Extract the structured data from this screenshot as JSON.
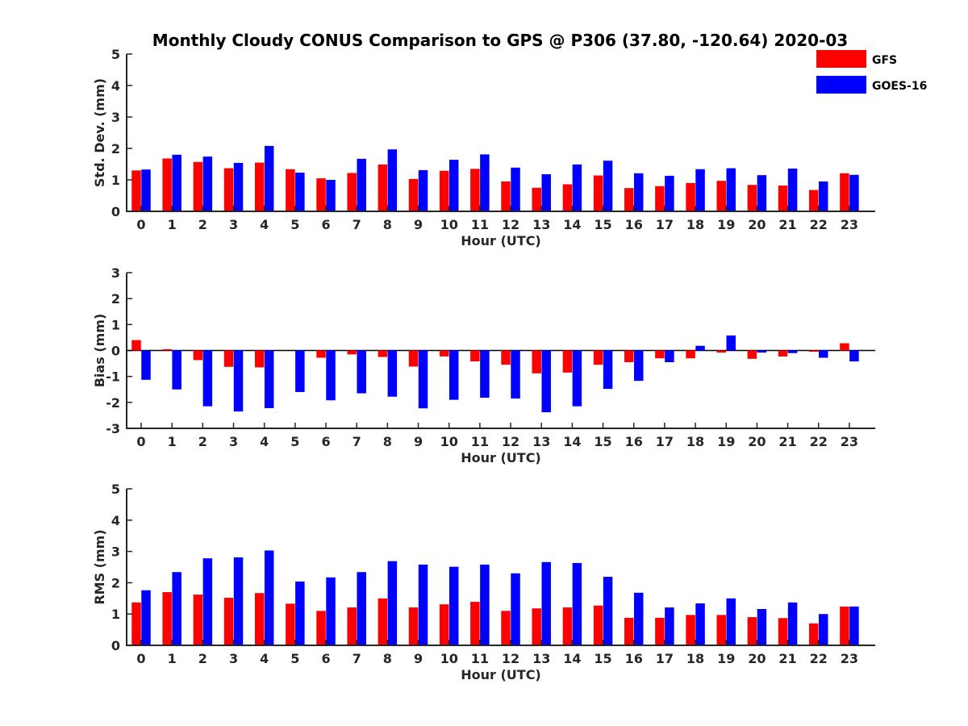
{
  "title": "Monthly Cloudy CONUS Comparison to GPS @ P306 (37.80, -120.64) 2020-03",
  "legend": {
    "placement": "top-right",
    "entries": [
      {
        "label": "GFS",
        "color": "#ff0000"
      },
      {
        "label": "GOES-16",
        "color": "#0000ff"
      }
    ]
  },
  "chart_data": [
    {
      "type": "bar",
      "xlabel": "Hour (UTC)",
      "ylabel": "Std. Dev. (mm)",
      "ylim": [
        0,
        5
      ],
      "yticks": [
        "0",
        "1",
        "2",
        "3",
        "4",
        "5"
      ],
      "categories": [
        "0",
        "1",
        "2",
        "3",
        "4",
        "5",
        "6",
        "7",
        "8",
        "9",
        "10",
        "11",
        "12",
        "13",
        "14",
        "15",
        "16",
        "17",
        "18",
        "19",
        "20",
        "21",
        "22",
        "23"
      ],
      "series": [
        {
          "name": "GFS",
          "color": "#ff0000",
          "values": [
            1.3,
            1.68,
            1.57,
            1.37,
            1.55,
            1.34,
            1.05,
            1.22,
            1.49,
            1.03,
            1.29,
            1.35,
            0.95,
            0.75,
            0.86,
            1.14,
            0.74,
            0.8,
            0.9,
            0.97,
            0.84,
            0.82,
            0.68,
            1.21
          ]
        },
        {
          "name": "GOES-16",
          "color": "#0000ff",
          "values": [
            1.33,
            1.8,
            1.74,
            1.54,
            2.08,
            1.23,
            1.0,
            1.67,
            1.97,
            1.31,
            1.64,
            1.81,
            1.39,
            1.18,
            1.49,
            1.61,
            1.21,
            1.13,
            1.34,
            1.37,
            1.15,
            1.36,
            0.95,
            1.16
          ]
        }
      ]
    },
    {
      "type": "bar",
      "xlabel": "Hour (UTC)",
      "ylabel": "Bias (mm)",
      "ylim": [
        -3,
        3
      ],
      "yticks": [
        "-3",
        "-2",
        "-1",
        "0",
        "1",
        "2",
        "3"
      ],
      "categories": [
        "0",
        "1",
        "2",
        "3",
        "4",
        "5",
        "6",
        "7",
        "8",
        "9",
        "10",
        "11",
        "12",
        "13",
        "14",
        "15",
        "16",
        "17",
        "18",
        "19",
        "20",
        "21",
        "22",
        "23"
      ],
      "series": [
        {
          "name": "GFS",
          "color": "#ff0000",
          "values": [
            0.4,
            0.05,
            -0.37,
            -0.63,
            -0.65,
            0.0,
            -0.28,
            -0.15,
            -0.25,
            -0.62,
            -0.23,
            -0.42,
            -0.55,
            -0.88,
            -0.85,
            -0.55,
            -0.45,
            -0.3,
            -0.3,
            -0.08,
            -0.32,
            -0.23,
            -0.05,
            0.28
          ]
        },
        {
          "name": "GOES-16",
          "color": "#0000ff",
          "values": [
            -1.13,
            -1.5,
            -2.15,
            -2.35,
            -2.22,
            -1.6,
            -1.92,
            -1.65,
            -1.78,
            -2.23,
            -1.9,
            -1.82,
            -1.85,
            -2.38,
            -2.15,
            -1.48,
            -1.17,
            -0.45,
            0.18,
            0.58,
            -0.08,
            -0.1,
            -0.28,
            -0.42
          ]
        }
      ]
    },
    {
      "type": "bar",
      "xlabel": "Hour (UTC)",
      "ylabel": "RMS (mm)",
      "ylim": [
        0,
        5
      ],
      "yticks": [
        "0",
        "1",
        "2",
        "3",
        "4",
        "5"
      ],
      "categories": [
        "0",
        "1",
        "2",
        "3",
        "4",
        "5",
        "6",
        "7",
        "8",
        "9",
        "10",
        "11",
        "12",
        "13",
        "14",
        "15",
        "16",
        "17",
        "18",
        "19",
        "20",
        "21",
        "22",
        "23"
      ],
      "series": [
        {
          "name": "GFS",
          "color": "#ff0000",
          "values": [
            1.37,
            1.7,
            1.62,
            1.52,
            1.67,
            1.33,
            1.1,
            1.21,
            1.5,
            1.21,
            1.31,
            1.39,
            1.1,
            1.18,
            1.21,
            1.27,
            0.88,
            0.88,
            0.97,
            0.97,
            0.9,
            0.87,
            0.7,
            1.24
          ]
        },
        {
          "name": "GOES-16",
          "color": "#0000ff",
          "values": [
            1.76,
            2.34,
            2.78,
            2.81,
            3.03,
            2.04,
            2.17,
            2.34,
            2.69,
            2.58,
            2.51,
            2.58,
            2.3,
            2.66,
            2.63,
            2.19,
            1.68,
            1.21,
            1.34,
            1.5,
            1.16,
            1.37,
            1.0,
            1.24
          ]
        }
      ]
    }
  ]
}
